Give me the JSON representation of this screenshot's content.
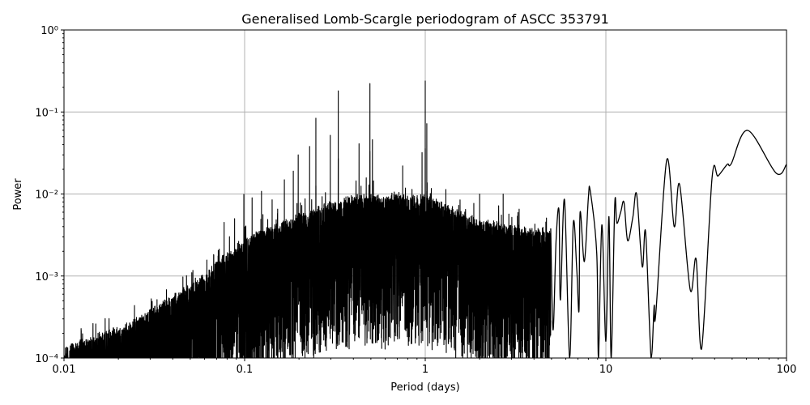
{
  "chart_data": {
    "type": "line",
    "title": "Generalised Lomb-Scargle periodogram of ASCC 353791",
    "xlabel": "Period (days)",
    "ylabel": "Power",
    "xscale": "log",
    "yscale": "log",
    "xlim": [
      0.01,
      100
    ],
    "ylim": [
      0.0001,
      1
    ],
    "grid": true,
    "line_color": "#000000",
    "grid_color": "#b0b0b0",
    "x_ticks": [
      0.01,
      0.1,
      1,
      10,
      100
    ],
    "x_tick_labels": [
      "0.01",
      "0.1",
      "1",
      "10",
      "100"
    ],
    "y_ticks": [
      0.0001,
      0.001,
      0.01,
      0.1,
      1
    ],
    "y_tick_labels": [
      "10⁻⁴",
      "10⁻³",
      "10⁻²",
      "10⁻¹",
      "10⁰"
    ],
    "peaks": [
      [
        1.0,
        0.239
      ],
      [
        0.494,
        0.222
      ],
      [
        0.33,
        0.181
      ],
      [
        0.248,
        0.084
      ],
      [
        1.02,
        0.072
      ],
      [
        0.298,
        0.052
      ],
      [
        0.51,
        0.046
      ],
      [
        0.43,
        0.041
      ],
      [
        0.229,
        0.038
      ],
      [
        0.96,
        0.032
      ],
      [
        0.198,
        0.03
      ],
      [
        0.75,
        0.022
      ],
      [
        0.186,
        0.019
      ],
      [
        0.166,
        0.0149
      ],
      [
        0.124,
        0.0108
      ],
      [
        0.099,
        0.0099
      ],
      [
        0.11,
        0.009
      ],
      [
        0.142,
        0.0085
      ],
      [
        2.0,
        0.01
      ],
      [
        2.7,
        0.01
      ],
      [
        0.088,
        0.005
      ],
      [
        0.077,
        0.0045
      ],
      [
        0.015,
        0.00026
      ]
    ],
    "long_period_curve": [
      [
        4.95,
        0.0038
      ],
      [
        5.1,
        0.00022
      ],
      [
        5.3,
        0.0027
      ],
      [
        5.5,
        0.0063
      ],
      [
        5.6,
        0.00051
      ],
      [
        5.9,
        0.0085
      ],
      [
        6.3,
        0.0001
      ],
      [
        6.6,
        0.0044
      ],
      [
        6.9,
        0.0012
      ],
      [
        7.1,
        0.00038
      ],
      [
        7.2,
        0.006
      ],
      [
        7.6,
        0.0015
      ],
      [
        8.0,
        0.009
      ],
      [
        8.2,
        0.0108
      ],
      [
        8.9,
        0.0019
      ],
      [
        9.1,
        0.0001
      ],
      [
        9.5,
        0.0042
      ],
      [
        10.0,
        0.00016
      ],
      [
        10.4,
        0.0053
      ],
      [
        10.7,
        0.0001
      ],
      [
        11.2,
        0.0075
      ],
      [
        11.5,
        0.0044
      ],
      [
        12.1,
        0.0061
      ],
      [
        12.6,
        0.0079
      ],
      [
        13.2,
        0.0027
      ],
      [
        14.1,
        0.0052
      ],
      [
        14.8,
        0.0099
      ],
      [
        15.9,
        0.0013
      ],
      [
        16.6,
        0.0034
      ],
      [
        17.8,
        0.0001
      ],
      [
        18.5,
        0.00043
      ],
      [
        18.9,
        0.00035
      ],
      [
        21.7,
        0.0257
      ],
      [
        23.9,
        0.004
      ],
      [
        25.6,
        0.013
      ],
      [
        29.3,
        0.00068
      ],
      [
        31.6,
        0.0016
      ],
      [
        33.9,
        0.00013
      ],
      [
        38.7,
        0.0156
      ],
      [
        41.8,
        0.0166
      ],
      [
        47.0,
        0.023
      ],
      [
        49.5,
        0.0235
      ],
      [
        61.0,
        0.0596
      ],
      [
        87.5,
        0.018
      ],
      [
        100.0,
        0.023
      ]
    ]
  }
}
